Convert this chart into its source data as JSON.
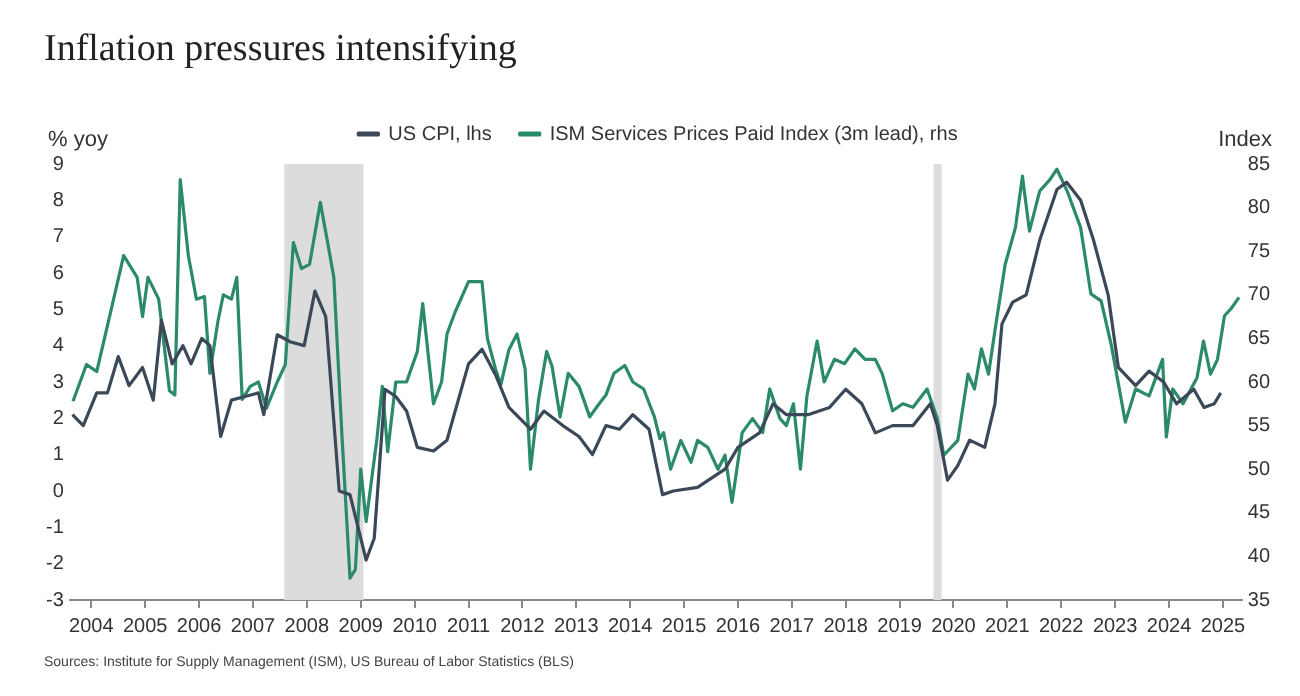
{
  "chart_data": {
    "type": "line",
    "title": "Inflation pressures intensifying",
    "ylabel": "% yoy",
    "y2label": "Index",
    "annotations": [
      "Sources: Institute for Supply Management (ISM), US Bureau of Labor Statistics (BLS)"
    ],
    "legend": "top",
    "grid": false,
    "marker": "none",
    "line_style": "solid",
    "xlim": [
      2004.1,
      2025.85
    ],
    "xticks": [
      {
        "value": 2004.5,
        "label": "2004"
      },
      {
        "value": 2005.5,
        "label": "2005"
      },
      {
        "value": 2006.5,
        "label": "2006"
      },
      {
        "value": 2007.5,
        "label": "2007"
      },
      {
        "value": 2008.5,
        "label": "2008"
      },
      {
        "value": 2009.5,
        "label": "2009"
      },
      {
        "value": 2010.5,
        "label": "2010"
      },
      {
        "value": 2011.5,
        "label": "2011"
      },
      {
        "value": 2012.5,
        "label": "2012"
      },
      {
        "value": 2013.5,
        "label": "2013"
      },
      {
        "value": 2014.5,
        "label": "2014"
      },
      {
        "value": 2015.5,
        "label": "2015"
      },
      {
        "value": 2016.5,
        "label": "2016"
      },
      {
        "value": 2017.5,
        "label": "2017"
      },
      {
        "value": 2018.5,
        "label": "2018"
      },
      {
        "value": 2019.5,
        "label": "2019"
      },
      {
        "value": 2020.5,
        "label": "2020"
      },
      {
        "value": 2021.5,
        "label": "2021"
      },
      {
        "value": 2022.5,
        "label": "2022"
      },
      {
        "value": 2023.5,
        "label": "2023"
      },
      {
        "value": 2024.5,
        "label": "2024"
      },
      {
        "value": 2025.5,
        "label": "2025"
      }
    ],
    "ylim": [
      -3,
      9
    ],
    "yticks": [
      -3,
      -2,
      -1,
      0,
      1,
      2,
      3,
      4,
      5,
      6,
      7,
      8,
      9
    ],
    "y2lim": [
      35,
      85
    ],
    "y2ticks": [
      35,
      40,
      45,
      50,
      55,
      60,
      65,
      70,
      75,
      80,
      85
    ],
    "bands": [
      {
        "axis": "x",
        "from": 2008.08,
        "to": 2009.55,
        "color": "#dcdcdc"
      },
      {
        "axis": "x",
        "from": 2020.13,
        "to": 2020.28,
        "color": "#dcdcdc"
      }
    ],
    "series": [
      {
        "name": "US CPI, lhs",
        "color": "#3b4858",
        "x": [
          2004.15,
          2004.35,
          2004.6,
          2004.8,
          2005.0,
          2005.2,
          2005.45,
          2005.65,
          2005.8,
          2006.0,
          2006.2,
          2006.35,
          2006.55,
          2006.7,
          2006.9,
          2007.1,
          2007.35,
          2007.6,
          2007.7,
          2007.95,
          2008.2,
          2008.45,
          2008.65,
          2008.85,
          2009.1,
          2009.3,
          2009.6,
          2009.75,
          2009.95,
          2010.15,
          2010.35,
          2010.55,
          2010.85,
          2011.1,
          2011.5,
          2011.75,
          2012.0,
          2012.25,
          2012.65,
          2012.9,
          2013.25,
          2013.55,
          2013.8,
          2014.05,
          2014.3,
          2014.55,
          2014.85,
          2015.1,
          2015.3,
          2015.75,
          2016.26,
          2016.5,
          2016.9,
          2017.15,
          2017.4,
          2017.8,
          2018.2,
          2018.5,
          2018.8,
          2019.05,
          2019.37,
          2019.75,
          2020.07,
          2020.2,
          2020.39,
          2020.58,
          2020.8,
          2021.08,
          2021.27,
          2021.4,
          2021.6,
          2021.85,
          2022.1,
          2022.42,
          2022.6,
          2022.86,
          2023.1,
          2023.37,
          2023.56,
          2023.88,
          2024.13,
          2024.4,
          2024.64,
          2024.96,
          2025.15,
          2025.34,
          2025.46
        ],
        "values": [
          2.1,
          1.8,
          2.7,
          2.7,
          3.7,
          2.9,
          3.4,
          2.5,
          4.7,
          3.5,
          4.0,
          3.5,
          4.2,
          4.0,
          1.5,
          2.5,
          2.6,
          2.7,
          2.1,
          4.3,
          4.1,
          4.0,
          5.5,
          4.8,
          0.0,
          -0.1,
          -1.9,
          -1.3,
          2.8,
          2.6,
          2.2,
          1.2,
          1.1,
          1.4,
          3.5,
          3.9,
          3.2,
          2.3,
          1.7,
          2.2,
          1.8,
          1.5,
          1.0,
          1.8,
          1.7,
          2.1,
          1.7,
          -0.1,
          0.0,
          0.1,
          0.6,
          1.2,
          1.6,
          2.4,
          2.1,
          2.1,
          2.3,
          2.8,
          2.4,
          1.6,
          1.8,
          1.8,
          2.4,
          1.8,
          0.3,
          0.7,
          1.4,
          1.2,
          2.4,
          4.6,
          5.2,
          5.4,
          6.9,
          8.3,
          8.5,
          8.0,
          6.9,
          5.4,
          3.4,
          2.9,
          3.3,
          3.0,
          2.4,
          2.8,
          2.3,
          2.4,
          2.7
        ]
      },
      {
        "name": "ISM Services Prices Paid Index (3m lead), rhs",
        "color": "#2a8a6a",
        "axis": "y2",
        "x": [
          2004.16,
          2004.41,
          2004.6,
          2004.85,
          2005.1,
          2005.35,
          2005.45,
          2005.55,
          2005.75,
          2005.95,
          2006.05,
          2006.15,
          2006.3,
          2006.45,
          2006.6,
          2006.7,
          2006.85,
          2006.95,
          2007.1,
          2007.2,
          2007.3,
          2007.45,
          2007.6,
          2007.75,
          2007.95,
          2008.1,
          2008.25,
          2008.4,
          2008.55,
          2008.75,
          2008.9,
          2009.0,
          2009.15,
          2009.3,
          2009.4,
          2009.5,
          2009.6,
          2009.8,
          2009.9,
          2010.0,
          2010.15,
          2010.35,
          2010.55,
          2010.65,
          2010.85,
          2011.0,
          2011.1,
          2011.25,
          2011.5,
          2011.75,
          2011.85,
          2012.0,
          2012.1,
          2012.25,
          2012.4,
          2012.55,
          2012.65,
          2012.8,
          2012.95,
          2013.05,
          2013.2,
          2013.35,
          2013.55,
          2013.75,
          2013.9,
          2014.05,
          2014.2,
          2014.4,
          2014.55,
          2014.75,
          2014.95,
          2015.05,
          2015.12,
          2015.25,
          2015.44,
          2015.63,
          2015.75,
          2015.94,
          2016.13,
          2016.26,
          2016.39,
          2016.58,
          2016.77,
          2016.96,
          2017.09,
          2017.28,
          2017.4,
          2017.53,
          2017.66,
          2017.78,
          2017.97,
          2018.1,
          2018.29,
          2018.48,
          2018.67,
          2018.86,
          2019.05,
          2019.18,
          2019.37,
          2019.56,
          2019.75,
          2020.01,
          2020.2,
          2020.32,
          2020.58,
          2020.77,
          2020.89,
          2021.02,
          2021.15,
          2021.27,
          2021.46,
          2021.65,
          2021.78,
          2021.91,
          2022.1,
          2022.29,
          2022.42,
          2022.61,
          2022.86,
          2023.05,
          2023.24,
          2023.43,
          2023.69,
          2023.88,
          2024.13,
          2024.38,
          2024.45,
          2024.57,
          2024.76,
          2025.02,
          2025.14,
          2025.27,
          2025.4,
          2025.53,
          2025.65,
          2025.8
        ],
        "values": [
          57.8,
          62.0,
          61.2,
          67.8,
          74.5,
          72.0,
          67.5,
          72.0,
          69.5,
          59.0,
          58.5,
          83.2,
          74.5,
          69.5,
          69.8,
          61.0,
          67.0,
          70.0,
          69.5,
          72.0,
          58.0,
          59.5,
          60.0,
          57.0,
          60.0,
          62.0,
          76.0,
          73.0,
          73.5,
          80.6,
          75.5,
          72.0,
          54.0,
          37.5,
          38.5,
          50.0,
          44.0,
          53.5,
          59.5,
          52.0,
          60.0,
          60.0,
          63.5,
          69.0,
          57.5,
          60.0,
          65.5,
          68.0,
          71.5,
          71.5,
          65.0,
          61.5,
          59.7,
          63.7,
          65.5,
          61.5,
          50.0,
          58.0,
          63.5,
          61.8,
          56.0,
          61.0,
          59.5,
          56.0,
          57.3,
          58.5,
          61.0,
          61.9,
          60.0,
          59.2,
          56.0,
          53.5,
          54.2,
          50.0,
          53.3,
          50.8,
          53.3,
          52.5,
          50.0,
          51.6,
          46.2,
          54.2,
          55.8,
          54.2,
          59.2,
          55.8,
          55.0,
          57.5,
          50.0,
          58.4,
          64.7,
          60.0,
          62.6,
          62.1,
          63.8,
          62.6,
          62.6,
          60.9,
          56.7,
          57.5,
          57.1,
          59.2,
          55.8,
          51.6,
          53.3,
          60.9,
          59.2,
          63.8,
          60.9,
          65.9,
          73.5,
          77.7,
          83.6,
          77.3,
          81.9,
          83.2,
          84.4,
          81.9,
          77.7,
          70.1,
          69.3,
          64.2,
          55.4,
          59.2,
          58.4,
          62.6,
          53.7,
          59.2,
          57.5,
          60.5,
          64.7,
          60.9,
          62.6,
          67.6,
          68.4,
          69.7
        ]
      }
    ]
  }
}
